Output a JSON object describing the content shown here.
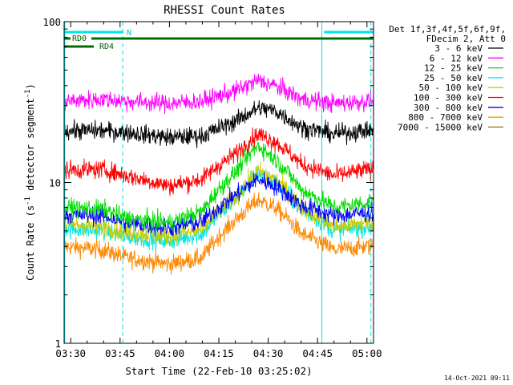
{
  "chart_data": {
    "type": "line",
    "title": "RHESSI Count Rates",
    "xlabel": "Start Time (22-Feb-10 03:25:02)",
    "ylabel_main": "Count Rate (s",
    "ylabel_sup1": "-1",
    "ylabel_mid": " detector segment",
    "ylabel_sup2": "-1",
    "ylabel_end": ")",
    "x_scale": "time",
    "y_scale": "log",
    "xlim_minutes": [
      3.0,
      97.0
    ],
    "ylim": [
      1,
      100
    ],
    "x_ticks": [
      {
        "minute": 5,
        "label": "03:30"
      },
      {
        "minute": 20,
        "label": "03:45"
      },
      {
        "minute": 35,
        "label": "04:00"
      },
      {
        "minute": 50,
        "label": "04:15"
      },
      {
        "minute": 65,
        "label": "04:30"
      },
      {
        "minute": 80,
        "label": "04:45"
      },
      {
        "minute": 95,
        "label": "05:00"
      }
    ],
    "y_ticks": [
      {
        "value": 1,
        "label": "1"
      },
      {
        "value": 10,
        "label": "10"
      },
      {
        "value": 100,
        "label": "100"
      }
    ],
    "legend": {
      "placement": "right",
      "header1": "Det 1f,3f,4f,5f,6f,9f,",
      "header2": "FDecim 2, Att 0"
    },
    "bars": [
      {
        "name": "N",
        "row": "top",
        "color": "#00e5e5",
        "segments": [
          [
            3.0,
            21.0
          ],
          [
            82.0,
            97.0
          ]
        ]
      },
      {
        "name": "RD0",
        "row": "middle",
        "color": "#007000",
        "segments": [
          [
            3.0,
            97.0
          ]
        ]
      },
      {
        "name": "RD4",
        "row": "bottom",
        "color": "#007000",
        "segments": [
          [
            3.0,
            12.0
          ]
        ]
      }
    ],
    "vertical_lines": [
      {
        "minute": 3.2,
        "style": "solid",
        "color": "#00e5e5"
      },
      {
        "minute": 20.8,
        "style": "dashed",
        "color": "#00e5e5"
      },
      {
        "minute": 81.3,
        "style": "solid",
        "color": "#00e5e5"
      },
      {
        "minute": 96.2,
        "style": "dashed",
        "color": "#00e5e5"
      }
    ],
    "series": [
      {
        "name": "3 - 6 keV",
        "color": "#000000",
        "x": [
          3,
          15,
          22,
          35,
          45,
          55,
          62,
          67,
          75,
          85,
          95
        ],
        "y": [
          21,
          21,
          20.5,
          19,
          19.5,
          24,
          29,
          28,
          22,
          20,
          21
        ]
      },
      {
        "name": "6 - 12 keV",
        "color": "#ff00ff",
        "x": [
          3,
          15,
          22,
          35,
          45,
          55,
          62,
          67,
          75,
          85,
          95
        ],
        "y": [
          32,
          33,
          32,
          31,
          32,
          37,
          43,
          40,
          33,
          31,
          32
        ]
      },
      {
        "name": "12 - 25 keV",
        "color": "#00dd00",
        "x": [
          3,
          15,
          22,
          35,
          45,
          55,
          62,
          67,
          75,
          85,
          95
        ],
        "y": [
          7,
          6.8,
          6.0,
          5.6,
          6.6,
          11.5,
          17,
          14,
          9,
          7,
          7.5
        ]
      },
      {
        "name": "25 - 50 keV",
        "color": "#00e5e5",
        "x": [
          3,
          15,
          22,
          35,
          45,
          55,
          62,
          67,
          75,
          85,
          95
        ],
        "y": [
          5.2,
          5.0,
          4.6,
          4.3,
          4.8,
          7.8,
          11.5,
          10,
          6.8,
          5.0,
          5.3
        ]
      },
      {
        "name": "50 - 100 keV",
        "color": "#cccc00",
        "x": [
          3,
          15,
          22,
          35,
          45,
          55,
          62,
          67,
          75,
          85,
          95
        ],
        "y": [
          5.5,
          5.3,
          4.9,
          4.6,
          5.1,
          8.0,
          11.8,
          10.5,
          7,
          5.3,
          5.6
        ]
      },
      {
        "name": "100 - 300 keV",
        "color": "#ff0000",
        "x": [
          3,
          15,
          22,
          35,
          45,
          55,
          62,
          67,
          75,
          85,
          95
        ],
        "y": [
          12,
          12,
          11,
          9.5,
          10.5,
          15,
          20,
          18,
          13,
          11,
          12
        ]
      },
      {
        "name": "300 - 800 keV",
        "color": "#0000ff",
        "x": [
          3,
          15,
          22,
          35,
          45,
          55,
          62,
          67,
          75,
          85,
          95
        ],
        "y": [
          6.3,
          6.2,
          5.6,
          5.2,
          5.7,
          8.3,
          10.5,
          9.5,
          7.2,
          6.2,
          6.5
        ]
      },
      {
        "name": "800 - 7000 keV",
        "color": "#ff8800",
        "x": [
          3,
          15,
          22,
          35,
          45,
          55,
          62,
          67,
          75,
          85,
          95
        ],
        "y": [
          4.0,
          3.8,
          3.4,
          3.1,
          3.4,
          5.8,
          7.8,
          7.0,
          4.8,
          3.8,
          4.0
        ]
      },
      {
        "name": "7000 - 15000 keV",
        "color": "#8b7d00",
        "x": [],
        "y": []
      }
    ],
    "footer_timestamp": "14-Oct-2021 09:11"
  }
}
